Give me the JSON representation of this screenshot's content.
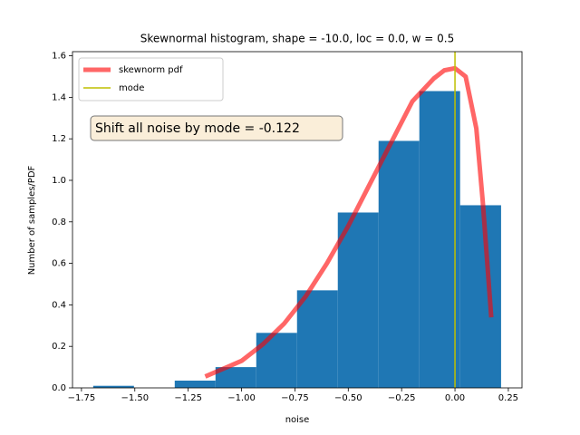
{
  "chart_data": {
    "type": "histogram",
    "title": "Skewnormal histogram, shape = -10.0, loc = 0.0, w = 0.5",
    "x_label": "noise",
    "y_label": "Number of samples/PDF",
    "bins": [
      -1.695,
      -1.504,
      -1.313,
      -1.122,
      -0.931,
      -0.74,
      -0.549,
      -0.358,
      -0.167,
      0.024,
      0.216
    ],
    "values": [
      0.01,
      0,
      0.035,
      0.1,
      0.265,
      0.47,
      0.845,
      1.19,
      1.43,
      0.88
    ],
    "color": "#1f77b4",
    "series": [
      {
        "name": "skewnorm pdf",
        "type": "line",
        "color": "rgba(255,0,0,0.6)",
        "x": [
          -1.17,
          -1.0,
          -0.9,
          -0.8,
          -0.7,
          -0.6,
          -0.5,
          -0.4,
          -0.3,
          -0.2,
          -0.1,
          -0.05,
          0.0,
          0.05,
          0.1,
          0.13,
          0.15,
          0.17
        ],
        "values": [
          0.055,
          0.13,
          0.21,
          0.31,
          0.44,
          0.6,
          0.78,
          0.98,
          1.18,
          1.38,
          1.49,
          1.53,
          1.54,
          1.5,
          1.25,
          0.9,
          0.62,
          0.34
        ]
      },
      {
        "name": "mode",
        "type": "vline",
        "color": "#bfbf00",
        "x": 0.0
      }
    ],
    "annotation": "Shift all noise by mode = -0.122",
    "legend": "upper left",
    "xlim": [
      -1.792,
      0.314
    ],
    "ylim": [
      0,
      1.62
    ],
    "xticks": [
      {
        "value": -1.75,
        "label": "−1.75"
      },
      {
        "value": -1.5,
        "label": "−1.50"
      },
      {
        "value": -1.25,
        "label": "−1.25"
      },
      {
        "value": -1.0,
        "label": "−1.00"
      },
      {
        "value": -0.75,
        "label": "−0.75"
      },
      {
        "value": -0.5,
        "label": "−0.50"
      },
      {
        "value": -0.25,
        "label": "−0.25"
      },
      {
        "value": 0,
        "label": "0.00"
      },
      0.25
    ],
    "yticks": [
      {
        "value": 0,
        "label": "0.0"
      },
      0.2,
      0.4,
      0.6,
      0.8,
      {
        "value": 1,
        "label": "1.0"
      },
      1.2,
      1.4,
      1.6
    ]
  }
}
